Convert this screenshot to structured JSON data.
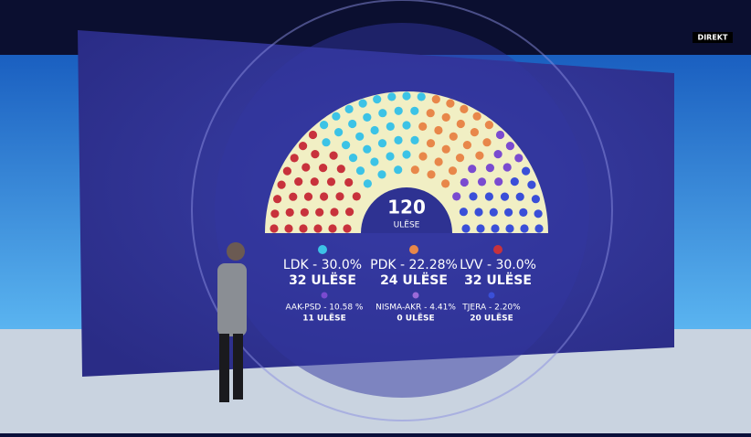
{
  "chart_data": {
    "type": "parliament",
    "total": 120,
    "total_label": "ULËSE",
    "categories": [
      "LVV - 30.0%",
      "LDK - 30.0%",
      "PDK - 22.28%",
      "AAK-PSD - 10.58 %",
      "NISMA-AKR - 4.41%",
      "TJERA - 2.20%"
    ],
    "values": [
      32,
      32,
      24,
      11,
      0,
      20
    ],
    "value_labels": [
      "32 ULËSE",
      "32 ULËSE",
      "24 ULËSE",
      "11 ULËSE",
      "0 ULËSE",
      "20 ULËSE"
    ],
    "colors": [
      "#c8323c",
      "#3cc3e6",
      "#e8874a",
      "#7a4bd0",
      "#9a6ad8",
      "#3a4fd8"
    ]
  },
  "broadcast": {
    "badge": "DIREKT"
  }
}
